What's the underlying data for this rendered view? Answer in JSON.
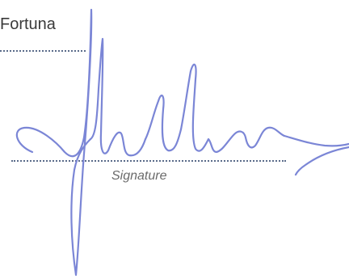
{
  "header": {
    "name": "Fortuna"
  },
  "signature_block": {
    "caption": "Signature",
    "ink_color": "#7b86d6"
  }
}
